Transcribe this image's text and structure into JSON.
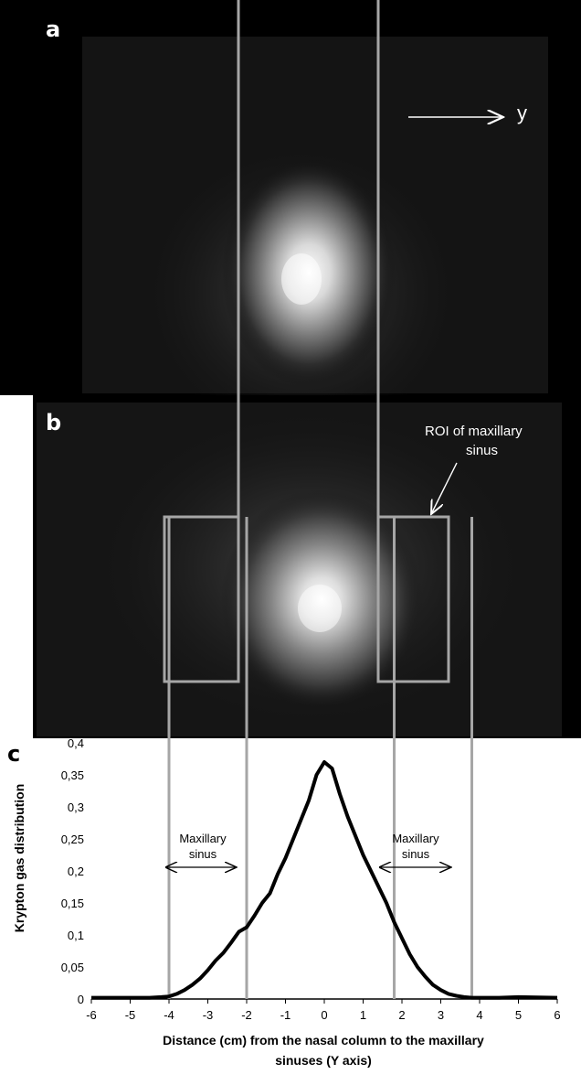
{
  "panels": {
    "a": {
      "letter": "a",
      "direction_label": "y"
    },
    "b": {
      "letter": "b",
      "roi_label_line1": "ROI of maxillary",
      "roi_label_line2": "sinus"
    },
    "c": {
      "letter": "c"
    }
  },
  "annotations": {
    "left_sinus_line1": "Maxillary",
    "left_sinus_line2": "sinus",
    "right_sinus_line1": "Maxillary",
    "right_sinus_line2": "sinus"
  },
  "colors": {
    "scan_background": "#000000",
    "guide_lines": "#a6a6a6",
    "curve": "#000000"
  },
  "chart_data": {
    "type": "line",
    "title": "",
    "xlabel_line1": "Distance (cm) from the nasal column to the maxillary",
    "xlabel_line2": "sinuses (Y axis)",
    "ylabel": "Krypton gas distribution",
    "xlim": [
      -6,
      6
    ],
    "ylim": [
      0,
      0.4
    ],
    "x_ticks": [
      "-6",
      "-5",
      "-4",
      "-3",
      "-2",
      "-1",
      "0",
      "1",
      "2",
      "3",
      "4",
      "5",
      "6"
    ],
    "y_ticks": [
      "0",
      "0,05",
      "0,1",
      "0,15",
      "0,2",
      "0,25",
      "0,3",
      "0,35",
      "0,4"
    ],
    "vertical_markers": [
      -4,
      -2,
      1.8,
      3.8
    ],
    "series": [
      {
        "x": [
          -6,
          -5,
          -4.5,
          -4.2,
          -4,
          -3.8,
          -3.6,
          -3.4,
          -3.2,
          -3,
          -2.8,
          -2.6,
          -2.4,
          -2.2,
          -2,
          -1.8,
          -1.6,
          -1.4,
          -1.2,
          -1,
          -0.8,
          -0.6,
          -0.4,
          -0.2,
          0,
          0.2,
          0.4,
          0.6,
          0.8,
          1,
          1.2,
          1.4,
          1.6,
          1.8,
          2,
          2.2,
          2.4,
          2.6,
          2.8,
          3,
          3.2,
          3.4,
          3.6,
          3.8,
          4,
          4.5,
          5,
          6
        ],
        "y": [
          0.002,
          0.002,
          0.002,
          0.003,
          0.004,
          0.008,
          0.014,
          0.022,
          0.032,
          0.045,
          0.06,
          0.072,
          0.088,
          0.105,
          0.112,
          0.13,
          0.15,
          0.165,
          0.195,
          0.22,
          0.25,
          0.28,
          0.31,
          0.35,
          0.37,
          0.36,
          0.32,
          0.285,
          0.255,
          0.225,
          0.2,
          0.175,
          0.15,
          0.12,
          0.095,
          0.07,
          0.05,
          0.035,
          0.022,
          0.014,
          0.008,
          0.005,
          0.003,
          0.002,
          0.002,
          0.002,
          0.003,
          0.002
        ]
      }
    ]
  }
}
